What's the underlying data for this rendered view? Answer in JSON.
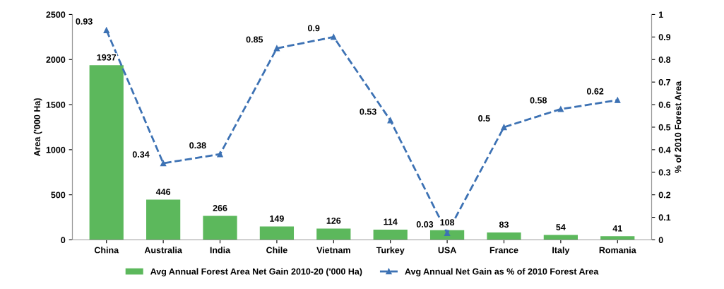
{
  "chart_data": {
    "type": "bar",
    "categories": [
      "China",
      "Australia",
      "India",
      "Chile",
      "Vietnam",
      "Turkey",
      "USA",
      "France",
      "Italy",
      "Romania"
    ],
    "ylabel": "Area ('000 Ha)",
    "y2label": "% of 2010 Forest Area",
    "ylim": [
      0,
      2500
    ],
    "yticks": [
      0,
      500,
      1000,
      1500,
      2000,
      2500
    ],
    "y2lim": [
      0,
      1
    ],
    "y2ticks": [
      0,
      0.1,
      0.2,
      0.3,
      0.4,
      0.5,
      0.6,
      0.7,
      0.8,
      0.9,
      1
    ],
    "data_labels": true,
    "legend": "bottom",
    "grid": false,
    "series": [
      {
        "name": "Avg Annual Forest Area Net Gain 2010-20 ('000 Ha)",
        "color": "#5cb85c",
        "values": [
          1937,
          446,
          266,
          149,
          126,
          114,
          108,
          83,
          54,
          41
        ]
      },
      {
        "name": "Avg Annual Net Gain as % of 2010 Forest Area",
        "type": "line",
        "axis": "y2",
        "color": "#3d72b4",
        "marker": "triangle",
        "line_style": "dashed",
        "values": [
          0.93,
          0.34,
          0.38,
          0.85,
          0.9,
          0.53,
          0.03,
          0.5,
          0.58,
          0.62
        ]
      }
    ]
  }
}
